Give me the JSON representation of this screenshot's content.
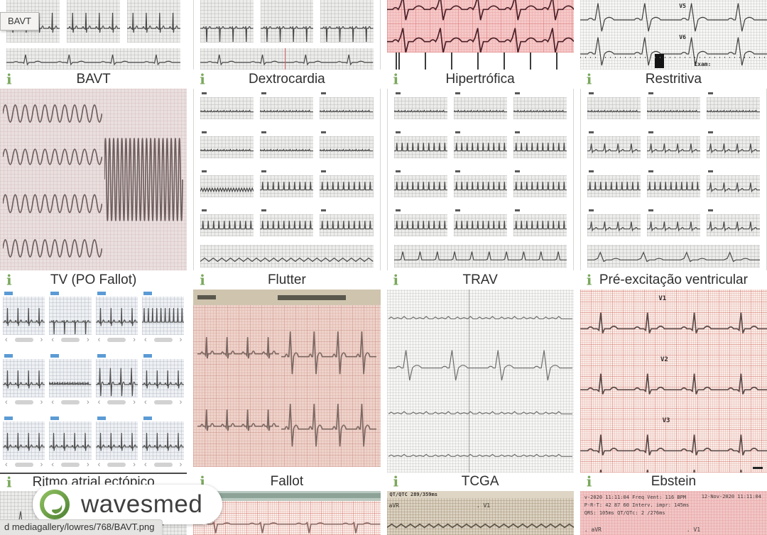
{
  "tooltip": {
    "text": "BAVT"
  },
  "logo": {
    "text": "wavesmed"
  },
  "status_bar": {
    "text": "d mediagallery/lowres/768/BAVT.png"
  },
  "icons": {
    "info_glyph": "i",
    "prev_glyph": "‹",
    "next_glyph": "›"
  },
  "colors": {
    "accent_green": "#7aa85c",
    "caption_text": "#2f2f2f",
    "pink_paper": "#f6c9c9",
    "red_grid_paper": "#f9efeb"
  },
  "gallery": {
    "items": [
      {
        "label": "BAVT"
      },
      {
        "label": "Dextrocardia"
      },
      {
        "label": "Hipertrófica"
      },
      {
        "label": "Restritiva"
      },
      {
        "label": "TV (PO Fallot)"
      },
      {
        "label": "Flutter"
      },
      {
        "label": "TRAV"
      },
      {
        "label": "Pré-excitação ventricular"
      },
      {
        "label": "Ritmo atrial ectópico"
      },
      {
        "label": "Fallot"
      },
      {
        "label": "TCGA"
      },
      {
        "label": "Ebstein"
      }
    ]
  },
  "annotations": {
    "restritiva": {
      "lead_v5": "V5",
      "lead_v6": "V6",
      "exam": "Exam:"
    },
    "ebstein": {
      "lead_v1": "V1",
      "lead_v2": "V2",
      "lead_v3": "V3"
    },
    "partial_tcga_bottom": {
      "qt_text": "QT/QTC 289/359ms",
      "lead_avr": "aVR",
      "lead_v1": ". V1"
    },
    "partial_ebstein_bottom": {
      "line1": "v-2020 11:11:04  Freq Vent: 116 BPM",
      "line2": "P-R-T:  42  87  60  Interv. impr: 145ms",
      "line3": "QRS: 105ms  QT/QTc: 2 /276ms",
      "date_right": "12-Nov-2020 11:11:04",
      "lead_avr": ". aVR",
      "lead_v1": ". V1"
    }
  }
}
